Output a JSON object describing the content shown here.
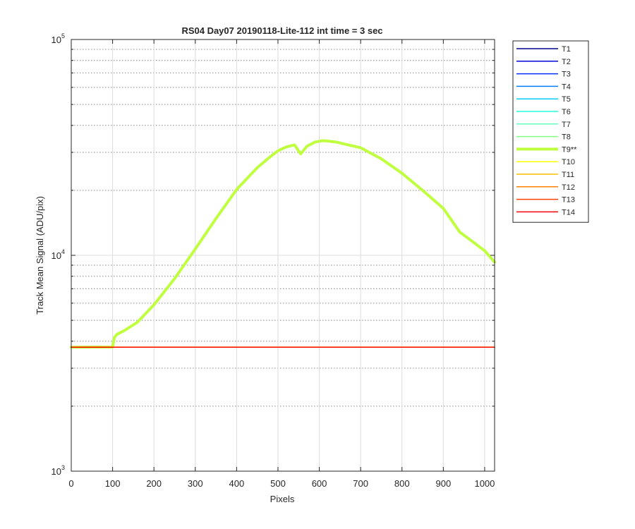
{
  "chart_data": {
    "type": "line",
    "title": "RS04 Day07 20190118-Lite-112 int time = 3 sec",
    "xlabel": "Pixels",
    "ylabel": "Track Mean Signal (ADU/pix)",
    "xlim": [
      0,
      1024
    ],
    "ylim": [
      1000,
      100000
    ],
    "yscale": "log",
    "grid": true,
    "legend_position": "outside-right",
    "xticks": [
      0,
      100,
      200,
      300,
      400,
      500,
      600,
      700,
      800,
      900,
      1000
    ],
    "xtick_labels": [
      "0",
      "100",
      "200",
      "300",
      "400",
      "500",
      "600",
      "700",
      "800",
      "900",
      "1000"
    ],
    "yticks": [
      1000,
      10000,
      100000
    ],
    "ytick_labels": [
      {
        "base": "10",
        "exp": "3"
      },
      {
        "base": "10",
        "exp": "4"
      },
      {
        "base": "10",
        "exp": "5"
      }
    ],
    "series": [
      {
        "name": "T1",
        "color": "#00008F",
        "bold": false,
        "x": [
          0,
          1024
        ],
        "y": [
          3750,
          3750
        ]
      },
      {
        "name": "T2",
        "color": "#0000DF",
        "bold": false,
        "x": [
          0,
          1024
        ],
        "y": [
          3750,
          3750
        ]
      },
      {
        "name": "T3",
        "color": "#0030FF",
        "bold": false,
        "x": [
          0,
          1024
        ],
        "y": [
          3750,
          3750
        ]
      },
      {
        "name": "T4",
        "color": "#0080FF",
        "bold": false,
        "x": [
          0,
          1024
        ],
        "y": [
          3750,
          3750
        ]
      },
      {
        "name": "T5",
        "color": "#00CFFF",
        "bold": false,
        "x": [
          0,
          1024
        ],
        "y": [
          3750,
          3750
        ]
      },
      {
        "name": "T6",
        "color": "#20FFDF",
        "bold": false,
        "x": [
          0,
          1024
        ],
        "y": [
          3750,
          3750
        ]
      },
      {
        "name": "T7",
        "color": "#60FFBF",
        "bold": false,
        "x": [
          0,
          1024
        ],
        "y": [
          3750,
          3750
        ]
      },
      {
        "name": "T8",
        "color": "#80FF80",
        "bold": false,
        "x": [
          0,
          1024
        ],
        "y": [
          3750,
          3750
        ]
      },
      {
        "name": "T9**",
        "color": "#BFFF40",
        "bold": true,
        "x": [
          0,
          100,
          104,
          110,
          130,
          160,
          200,
          250,
          300,
          350,
          400,
          450,
          480,
          500,
          520,
          540,
          555,
          570,
          590,
          610,
          640,
          670,
          700,
          750,
          800,
          850,
          900,
          940,
          960,
          1000,
          1024
        ],
        "y": [
          3750,
          3760,
          4150,
          4300,
          4500,
          4900,
          5900,
          7800,
          10700,
          14800,
          20200,
          25500,
          28500,
          30500,
          31800,
          32500,
          29500,
          32000,
          33500,
          34000,
          33500,
          32500,
          31500,
          28000,
          24000,
          20000,
          16500,
          12800,
          12000,
          10500,
          9300
        ]
      },
      {
        "name": "T10",
        "color": "#FFFF00",
        "bold": false,
        "x": [
          0,
          1024
        ],
        "y": [
          3760,
          3760
        ]
      },
      {
        "name": "T11",
        "color": "#FFBF00",
        "bold": false,
        "x": [
          0,
          1024
        ],
        "y": [
          3750,
          3750
        ]
      },
      {
        "name": "T12",
        "color": "#FF8000",
        "bold": false,
        "x": [
          0,
          1024
        ],
        "y": [
          3750,
          3750
        ]
      },
      {
        "name": "T13",
        "color": "#FF4000",
        "bold": false,
        "x": [
          0,
          1024
        ],
        "y": [
          3750,
          3750
        ]
      },
      {
        "name": "T14",
        "color": "#FF0000",
        "bold": false,
        "x": [
          0,
          1024
        ],
        "y": [
          3750,
          3750
        ]
      }
    ]
  }
}
